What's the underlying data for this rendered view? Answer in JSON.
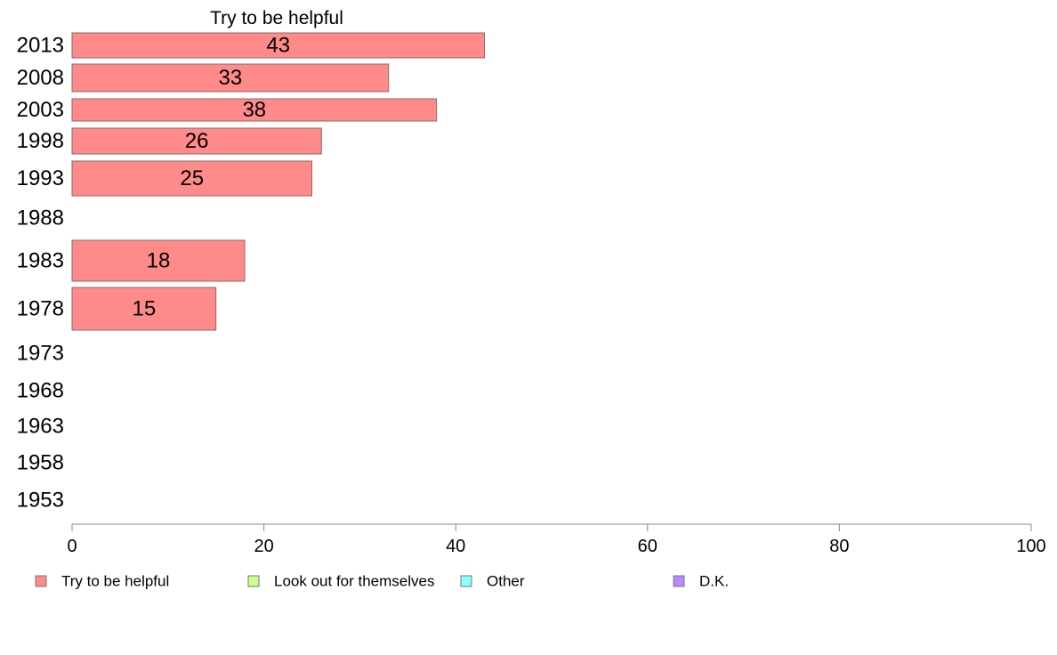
{
  "chart_data": {
    "type": "bar",
    "orientation": "horizontal",
    "title": "Try to be helpful",
    "categories": [
      "2013",
      "2008",
      "2003",
      "1998",
      "1993",
      "1988",
      "1983",
      "1978",
      "1973",
      "1968",
      "1963",
      "1958",
      "1953"
    ],
    "series": [
      {
        "name": "Try to be helpful",
        "color": "#ff8a8a",
        "values": [
          43,
          33,
          38,
          26,
          25,
          null,
          18,
          15,
          null,
          null,
          null,
          null,
          null
        ],
        "labels": [
          "43",
          "33",
          "38",
          "26",
          "25",
          "",
          "18",
          "15",
          "",
          "",
          "",
          "",
          ""
        ]
      }
    ],
    "xlim": [
      0,
      100
    ],
    "xticks": [
      "0",
      "20",
      "40",
      "60",
      "80",
      "100"
    ],
    "grid": false,
    "legend": {
      "placement": "bottom",
      "items": [
        {
          "label": "Try to be helpful",
          "color": "#ff8a8a"
        },
        {
          "label": "Look out for themselves",
          "color": "#ccff88"
        },
        {
          "label": "Other",
          "color": "#88ffff"
        },
        {
          "label": "D.K.",
          "color": "#bb88ff"
        }
      ]
    }
  }
}
